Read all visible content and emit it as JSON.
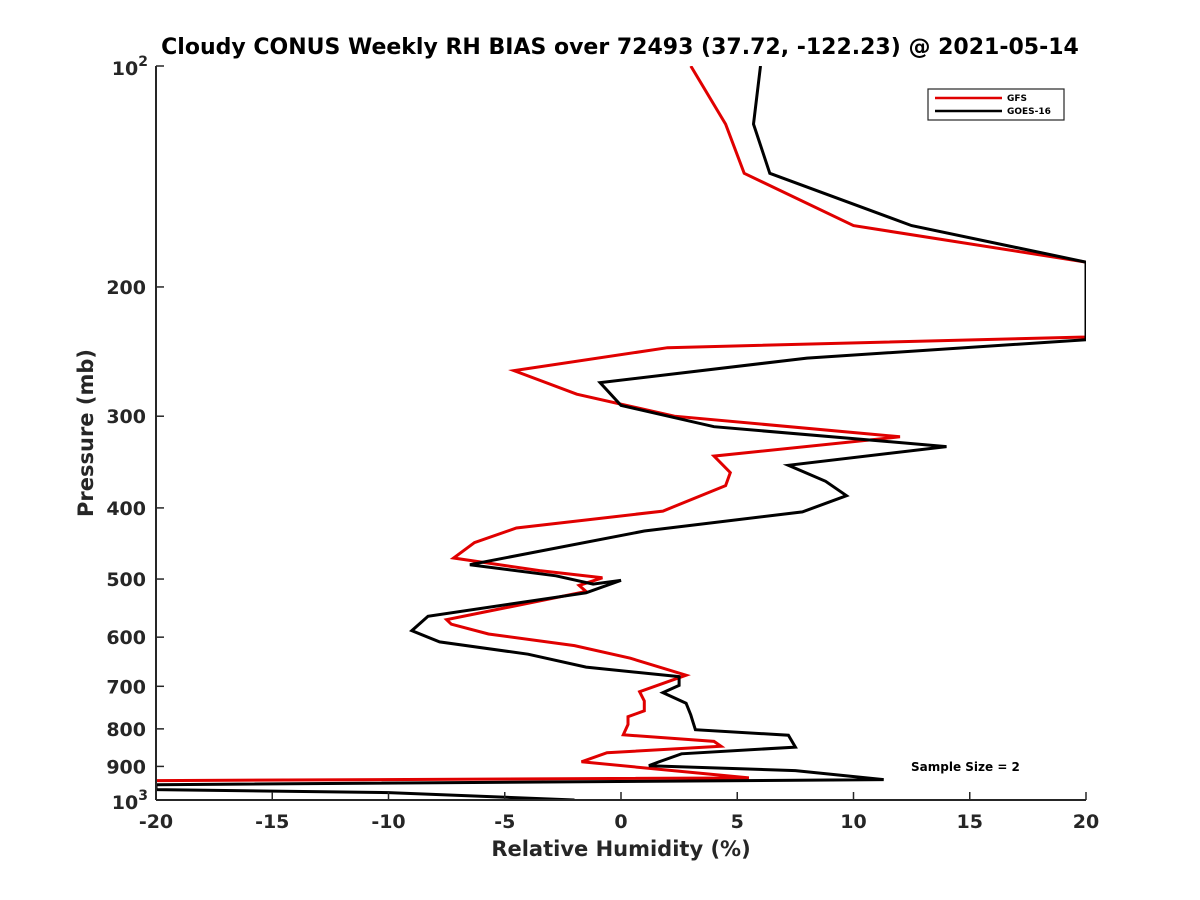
{
  "chart_data": {
    "type": "line",
    "title": "Cloudy CONUS Weekly RH BIAS over 72493 (37.72, -122.23) @ 2021-05-14",
    "xlabel": "Relative Humidity (%)",
    "ylabel": "Pressure (mb)",
    "xlim": [
      -20,
      20
    ],
    "ylim": [
      100,
      1000
    ],
    "yscale": "log",
    "y_reversed": true,
    "grid": false,
    "legend_position": "top-right",
    "xticks": [
      "-20",
      "-15",
      "-10",
      "-5",
      "0",
      "5",
      "10",
      "15",
      "20"
    ],
    "xtick_values": [
      -20,
      -15,
      -10,
      -5,
      0,
      5,
      10,
      15,
      20
    ],
    "yticks": [
      {
        "base": "10",
        "exp": "2",
        "value": 100
      },
      {
        "label": "200",
        "value": 200
      },
      {
        "label": "300",
        "value": 300
      },
      {
        "label": "400",
        "value": 400
      },
      {
        "label": "500",
        "value": 500
      },
      {
        "label": "600",
        "value": 600
      },
      {
        "label": "700",
        "value": 700
      },
      {
        "label": "800",
        "value": 800
      },
      {
        "label": "900",
        "value": 900
      },
      {
        "base": "10",
        "exp": "3",
        "value": 1000
      }
    ],
    "series": [
      {
        "name": "GFS",
        "color": "#e00000",
        "points": [
          [
            3.0,
            100
          ],
          [
            4.5,
            120
          ],
          [
            5.3,
            140
          ],
          [
            10.0,
            165
          ],
          [
            20.0,
            185
          ],
          [
            20.0,
            234
          ],
          [
            2.0,
            242
          ],
          [
            -4.6,
            260
          ],
          [
            -1.9,
            280
          ],
          [
            2.3,
            300
          ],
          [
            12.0,
            320
          ],
          [
            4.0,
            340
          ],
          [
            4.7,
            358
          ],
          [
            4.5,
            373
          ],
          [
            1.8,
            404
          ],
          [
            -4.5,
            426
          ],
          [
            -6.3,
            446
          ],
          [
            -7.2,
            468
          ],
          [
            -3.5,
            487
          ],
          [
            -0.8,
            498
          ],
          [
            -1.8,
            510
          ],
          [
            -1.5,
            520
          ],
          [
            -7.5,
            568
          ],
          [
            -7.3,
            576
          ],
          [
            -5.7,
            594
          ],
          [
            -2.0,
            616
          ],
          [
            0.4,
            641
          ],
          [
            2.8,
            676
          ],
          [
            0.8,
            712
          ],
          [
            1.0,
            733
          ],
          [
            1.0,
            756
          ],
          [
            0.3,
            770
          ],
          [
            0.3,
            789
          ],
          [
            0.1,
            815
          ],
          [
            4.0,
            832
          ],
          [
            4.3,
            845
          ],
          [
            -0.6,
            862
          ],
          [
            -1.7,
            887
          ],
          [
            5.5,
            933
          ],
          [
            -20.0,
            941
          ]
        ]
      },
      {
        "name": "GOES-16",
        "color": "#000000",
        "points": [
          [
            6.0,
            100
          ],
          [
            5.7,
            120
          ],
          [
            6.4,
            140
          ],
          [
            12.5,
            165
          ],
          [
            20.0,
            185
          ],
          [
            20.0,
            236
          ],
          [
            8.0,
            250
          ],
          [
            -0.9,
            270
          ],
          [
            0.0,
            290
          ],
          [
            4.0,
            310
          ],
          [
            14.0,
            330
          ],
          [
            7.2,
            350
          ],
          [
            8.8,
            368
          ],
          [
            9.7,
            385
          ],
          [
            7.8,
            405
          ],
          [
            1.0,
            430
          ],
          [
            -6.5,
            478
          ],
          [
            -2.8,
            495
          ],
          [
            -1.2,
            508
          ],
          [
            -0.0,
            502
          ],
          [
            -1.5,
            522
          ],
          [
            -8.3,
            562
          ],
          [
            -9.0,
            588
          ],
          [
            -7.8,
            609
          ],
          [
            -4.0,
            633
          ],
          [
            -1.5,
            659
          ],
          [
            2.5,
            679
          ],
          [
            2.5,
            698
          ],
          [
            1.8,
            714
          ],
          [
            2.8,
            738
          ],
          [
            3.0,
            766
          ],
          [
            3.1,
            784
          ],
          [
            3.2,
            802
          ],
          [
            7.2,
            816
          ],
          [
            7.5,
            847
          ],
          [
            2.6,
            865
          ],
          [
            1.6,
            888
          ],
          [
            1.2,
            898
          ],
          [
            7.5,
            912
          ],
          [
            11.3,
            938
          ],
          [
            -20.0,
            953
          ],
          [
            -20.0,
            968
          ],
          [
            -10.0,
            977
          ],
          [
            -2.0,
            1000
          ]
        ]
      }
    ],
    "legend": {
      "entries": [
        {
          "name": "GFS",
          "color": "#e00000"
        },
        {
          "name": "GOES-16",
          "color": "#000000"
        }
      ]
    },
    "annotation": "Sample Size = 2"
  }
}
